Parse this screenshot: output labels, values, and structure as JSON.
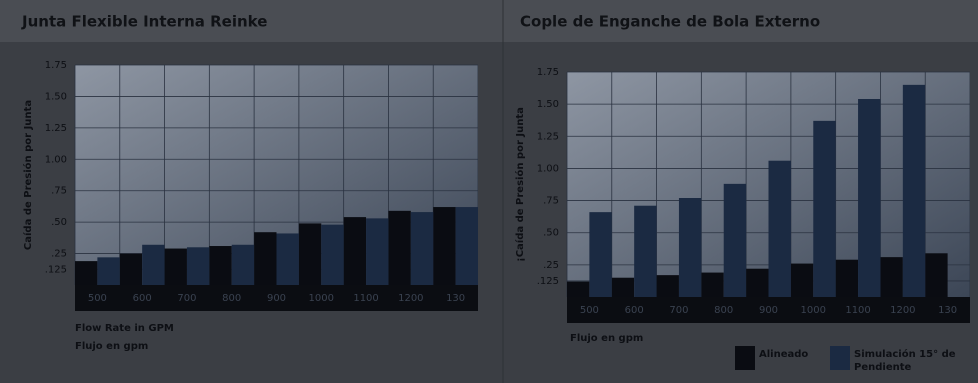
{
  "chart_data": [
    {
      "type": "bar",
      "title": "Junta Flexible Interna Reinke",
      "y_label": "Caída de Presión por Junta",
      "x_label": "Flow Rate in GPM",
      "x_label2": "Flujo en gpm",
      "categories": [
        "500",
        "600",
        "700",
        "800",
        "900",
        "1000",
        "1100",
        "1200",
        "130"
      ],
      "series": [
        {
          "color": "#0a0c12",
          "values": [
            0.19,
            0.25,
            0.29,
            0.31,
            0.42,
            0.49,
            0.54,
            0.59,
            0.62
          ]
        },
        {
          "color": "#1b2a42",
          "values": [
            0.22,
            0.32,
            0.3,
            0.32,
            0.41,
            0.48,
            0.53,
            0.58,
            0.62
          ]
        }
      ],
      "ylim": [
        0,
        1.75
      ],
      "yticks": [
        {
          "value": 0.125,
          "label": ".125"
        },
        {
          "value": 0.25,
          "label": ".25"
        },
        {
          "value": 0.5,
          "label": ".50"
        },
        {
          "value": 0.75,
          "label": ".75"
        },
        {
          "value": 1,
          "label": "1.00"
        },
        {
          "value": 1.25,
          "label": "1.25"
        },
        {
          "value": 1.5,
          "label": "1.50"
        },
        {
          "value": 1.75,
          "label": "1.75"
        }
      ],
      "grid": true
    },
    {
      "type": "bar",
      "title": "Cople de Enganche de Bola Externo",
      "y_label": "¡Caída de Presión por Junta",
      "x_label": "Flujo en gpm",
      "categories": [
        "500",
        "600",
        "700",
        "800",
        "900",
        "1000",
        "1100",
        "1200",
        "130"
      ],
      "series": [
        {
          "name": "Alineado",
          "color": "#0a0c12",
          "values": [
            0.12,
            0.15,
            0.17,
            0.19,
            0.22,
            0.26,
            0.29,
            0.31,
            0.34
          ]
        },
        {
          "name": "Simulación 15° de Pendiente",
          "color": "#1b2a42",
          "values": [
            0.66,
            0.71,
            0.77,
            0.88,
            1.06,
            1.37,
            1.54,
            1.65,
            null
          ]
        }
      ],
      "ylim": [
        0,
        1.75
      ],
      "yticks": [
        {
          "value": 0.125,
          "label": ".125"
        },
        {
          "value": 0.25,
          "label": ".25"
        },
        {
          "value": 0.5,
          "label": ".50"
        },
        {
          "value": 0.75,
          "label": ".75"
        },
        {
          "value": 1,
          "label": "1.00"
        },
        {
          "value": 1.25,
          "label": "1.25"
        },
        {
          "value": 1.5,
          "label": "1.50"
        },
        {
          "value": 1.75,
          "label": "1.75"
        }
      ],
      "grid": true,
      "legend": "bottom"
    }
  ]
}
